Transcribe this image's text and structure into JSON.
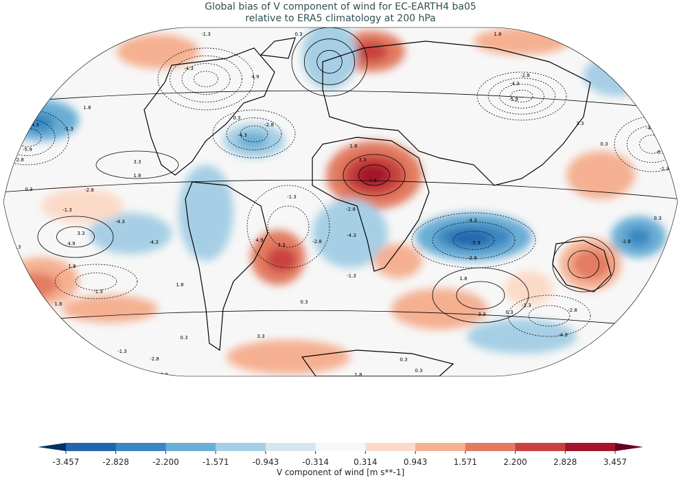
{
  "title_line1": "Global bias of V component of wind for EC-EARTH4 ba05",
  "title_line2": "relative to ERA5 climatology at 200 hPa",
  "colorbar": {
    "label": "V component of wind [m s**-1]",
    "ticks": [
      "-3.457",
      "-2.828",
      "-2.200",
      "-1.571",
      "-0.943",
      "-0.314",
      "0.314",
      "0.943",
      "1.571",
      "2.200",
      "2.828",
      "3.457"
    ],
    "colors": [
      "#053061",
      "#2166ac",
      "#3a87c0",
      "#6aaed6",
      "#a6cfe5",
      "#d6e7f1",
      "#f7f7f7",
      "#fcdac8",
      "#f5b092",
      "#e27b62",
      "#c8423f",
      "#a3152a",
      "#67001f"
    ],
    "extend": "both"
  },
  "contour_labels": [
    "-1.3",
    "0.3",
    "1.8",
    "-4.3",
    "4.9",
    "-2.8",
    "-4.3",
    "-5.9",
    "1.8",
    "-4.3",
    "-1.3",
    "0.3",
    "-2.8",
    "-4.3",
    "1.8",
    "3.3",
    "4.9",
    "-5.9",
    "-2.8",
    "3.3",
    "1.8",
    "0.3",
    "-2.8",
    "-1.3",
    "-4.3",
    "-4.3",
    "4.9",
    "3.3",
    "4.9",
    "3.3",
    "-2.8",
    "-4.3",
    "-2.8",
    "-1.3",
    "-4.3",
    "-5.9",
    "-2.8",
    "1.8",
    "3.3",
    "0.3",
    "-1.3",
    "-2.8",
    "-4.3",
    "-2.8",
    "0.3",
    "-4.3",
    "-5.9",
    "-1.3",
    "0.3",
    "3.3",
    "1.8",
    "-1.3",
    "1.8",
    "1.8",
    "0.3",
    "-1.3",
    "0.3",
    "-1.3",
    "3.3",
    "-2.8",
    "-2.8",
    "0.3",
    "0.3",
    "1.8",
    "-1.3",
    "0.3"
  ]
}
